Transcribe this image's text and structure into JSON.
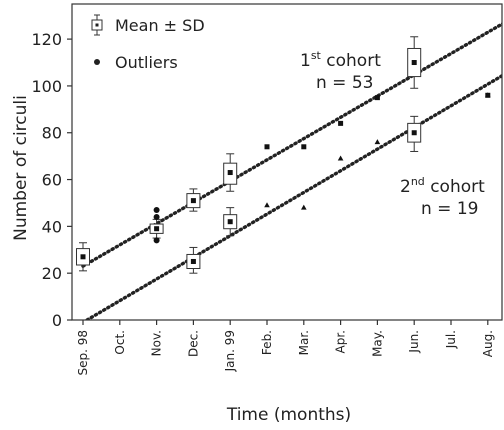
{
  "chart_data": {
    "type": "scatter",
    "xlabel": "Time (months)",
    "ylabel": "Number of circuli",
    "categories": [
      "Sep. 98",
      "Oct.",
      "Nov.",
      "Dec.",
      "Jan. 99",
      "Feb.",
      "Mar.",
      "Apr.",
      "May.",
      "Jun.",
      "Jul.",
      "Aug."
    ],
    "ylim": [
      0,
      135
    ],
    "yticks": [
      0,
      20,
      40,
      60,
      80,
      100,
      120
    ],
    "legend": {
      "position": "top-left",
      "items": [
        {
          "label": "Mean ± SD",
          "symbol": "box"
        },
        {
          "label": "Outliers",
          "symbol": "dot"
        }
      ]
    },
    "series": [
      {
        "key": "cohort1",
        "annotation": {
          "line1_base": "1",
          "line1_sup": "st",
          "line1_rest": " cohort",
          "line2": "n = 53"
        },
        "line": {
          "x": [
            0,
            12
          ],
          "y": [
            23,
            132
          ]
        },
        "box_points": [
          {
            "x": 0,
            "mean": 27,
            "box_low": 23.5,
            "box_high": 30.5,
            "whisker_low": 21,
            "whisker_high": 33
          },
          {
            "x": 2,
            "mean": 39,
            "box_low": 37,
            "box_high": 41,
            "whisker_low": 35,
            "whisker_high": 43
          },
          {
            "x": 3,
            "mean": 51,
            "box_low": 48,
            "box_high": 54,
            "whisker_low": 46.5,
            "whisker_high": 56
          },
          {
            "x": 4,
            "mean": 63,
            "box_low": 58,
            "box_high": 67,
            "whisker_low": 55,
            "whisker_high": 71
          },
          {
            "x": 9,
            "mean": 110,
            "box_low": 104,
            "box_high": 116,
            "whisker_low": 99,
            "whisker_high": 121
          }
        ],
        "points": [
          {
            "x": 5,
            "y": 74
          },
          {
            "x": 6,
            "y": 74
          },
          {
            "x": 7,
            "y": 84
          },
          {
            "x": 8,
            "y": 95
          },
          {
            "x": 11,
            "y": 96
          }
        ],
        "outliers": [
          {
            "x": 2,
            "y": 47
          },
          {
            "x": 2,
            "y": 44
          },
          {
            "x": 2,
            "y": 34
          }
        ]
      },
      {
        "key": "cohort2",
        "annotation": {
          "line1_base": "2",
          "line1_sup": "nd",
          "line1_rest": " cohort",
          "line2": "n = 19"
        },
        "line": {
          "x": [
            0,
            12
          ],
          "y": [
            -1,
            110
          ]
        },
        "box_points": [
          {
            "x": 3,
            "mean": 25,
            "box_low": 22,
            "box_high": 28,
            "whisker_low": 20,
            "whisker_high": 31
          },
          {
            "x": 4,
            "mean": 42,
            "box_low": 39,
            "box_high": 45,
            "whisker_low": 36,
            "whisker_high": 48
          },
          {
            "x": 9,
            "mean": 80,
            "box_low": 76,
            "box_high": 84,
            "whisker_low": 72,
            "whisker_high": 87
          }
        ],
        "points": [
          {
            "x": 5,
            "y": 49
          },
          {
            "x": 6,
            "y": 48
          },
          {
            "x": 7,
            "y": 69
          },
          {
            "x": 8,
            "y": 76
          },
          {
            "x": 11,
            "y": 96
          }
        ],
        "outliers": []
      }
    ]
  }
}
